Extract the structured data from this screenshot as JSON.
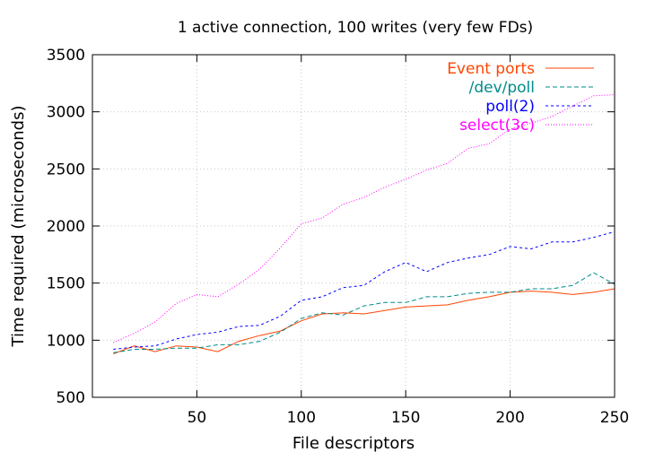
{
  "chart_data": {
    "type": "line",
    "title": "1 active connection, 100 writes (very few FDs)",
    "xlabel": "File descriptors",
    "ylabel": "Time required (microseconds)",
    "xlim": [
      0,
      250
    ],
    "ylim": [
      500,
      3500
    ],
    "xticks": [
      50,
      100,
      150,
      200,
      250
    ],
    "yticks": [
      500,
      1000,
      1500,
      2000,
      2500,
      3000,
      3500
    ],
    "grid": true,
    "legend": "top-right",
    "x": [
      10,
      20,
      30,
      40,
      50,
      60,
      70,
      80,
      90,
      100,
      110,
      120,
      130,
      140,
      150,
      160,
      170,
      180,
      190,
      200,
      210,
      220,
      230,
      240,
      250
    ],
    "series": [
      {
        "name": "Event ports",
        "color": "#ff4500",
        "dash": "",
        "values": [
          880,
          950,
          900,
          950,
          940,
          900,
          990,
          1040,
          1080,
          1170,
          1230,
          1240,
          1230,
          1260,
          1290,
          1300,
          1310,
          1350,
          1380,
          1420,
          1430,
          1420,
          1400,
          1420,
          1450
        ]
      },
      {
        "name": "/dev/poll",
        "color": "#008b8b",
        "dash": "5 3",
        "values": [
          890,
          920,
          920,
          930,
          930,
          960,
          960,
          990,
          1070,
          1190,
          1240,
          1220,
          1300,
          1330,
          1330,
          1380,
          1380,
          1410,
          1420,
          1420,
          1450,
          1450,
          1480,
          1590,
          1490
        ]
      },
      {
        "name": "poll(2)",
        "color": "#0000ff",
        "dash": "3 3",
        "values": [
          920,
          940,
          950,
          1010,
          1050,
          1070,
          1120,
          1130,
          1210,
          1350,
          1380,
          1460,
          1480,
          1600,
          1680,
          1600,
          1680,
          1720,
          1750,
          1820,
          1800,
          1860,
          1860,
          1900,
          1950
        ]
      },
      {
        "name": "select(3c)",
        "color": "#ff00ff",
        "dash": "1 2",
        "values": [
          980,
          1060,
          1160,
          1320,
          1400,
          1380,
          1490,
          1620,
          1810,
          2020,
          2070,
          2190,
          2250,
          2340,
          2410,
          2490,
          2550,
          2680,
          2720,
          2850,
          2900,
          2960,
          3050,
          3140,
          3150
        ]
      }
    ]
  }
}
